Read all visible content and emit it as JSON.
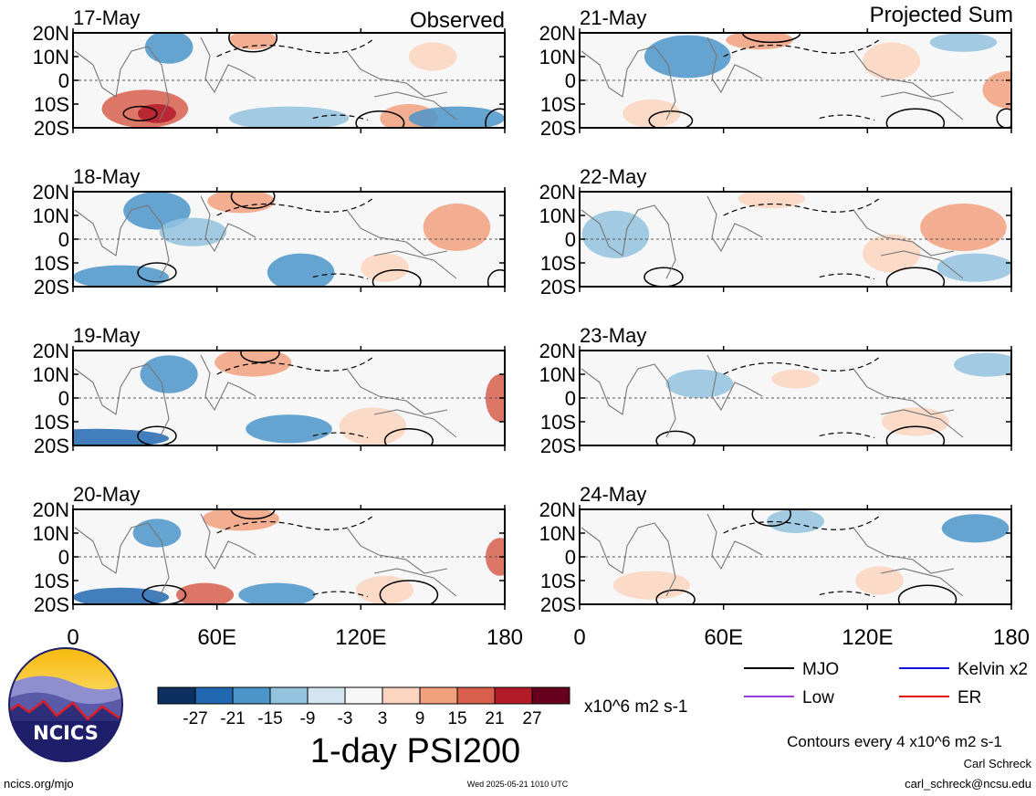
{
  "chart_data": {
    "type": "heatmap",
    "title": "1-day PSI200",
    "units": "x10^6 m2 s-1",
    "column_titles": [
      "Observed",
      "Projected Sum"
    ],
    "panels": [
      {
        "date": "17-May",
        "column": 0,
        "row": 0
      },
      {
        "date": "18-May",
        "column": 0,
        "row": 1
      },
      {
        "date": "19-May",
        "column": 0,
        "row": 2
      },
      {
        "date": "20-May",
        "column": 0,
        "row": 3
      },
      {
        "date": "21-May",
        "column": 1,
        "row": 0
      },
      {
        "date": "22-May",
        "column": 1,
        "row": 1
      },
      {
        "date": "23-May",
        "column": 1,
        "row": 2
      },
      {
        "date": "24-May",
        "column": 1,
        "row": 3
      }
    ],
    "x_ticks": [
      "0",
      "60E",
      "120E",
      "180"
    ],
    "y_ticks": [
      "20N",
      "10N",
      "0",
      "10S",
      "20S"
    ],
    "xlim": [
      0,
      180
    ],
    "ylim": [
      -20,
      20
    ],
    "colorbar": {
      "labels": [
        "-27",
        "-21",
        "-15",
        "-9",
        "-3",
        "3",
        "9",
        "15",
        "21",
        "27"
      ],
      "colors": [
        "#0c3060",
        "#2268b0",
        "#4b95c9",
        "#93c3df",
        "#d3e5f1",
        "#f7f7f7",
        "#fbd5c0",
        "#f2a17f",
        "#d75f4c",
        "#b41b2a",
        "#67001f"
      ]
    },
    "legend": [
      {
        "label": "MJO",
        "color": "#000000"
      },
      {
        "label": "Kelvin x2",
        "color": "#1010e0"
      },
      {
        "label": "Low",
        "color": "#9a3ae0"
      },
      {
        "label": "ER",
        "color": "#e01010"
      }
    ],
    "contour_note": "Contours every 4 x10^6 m2 s-1"
  },
  "logo": {
    "text": "NCICS"
  },
  "footer": {
    "site": "ncics.org/mjo",
    "timestamp": "Wed 2025-05-21 1010 UTC",
    "author": "Carl Schreck",
    "email": "carl_schreck@ncsu.edu"
  }
}
